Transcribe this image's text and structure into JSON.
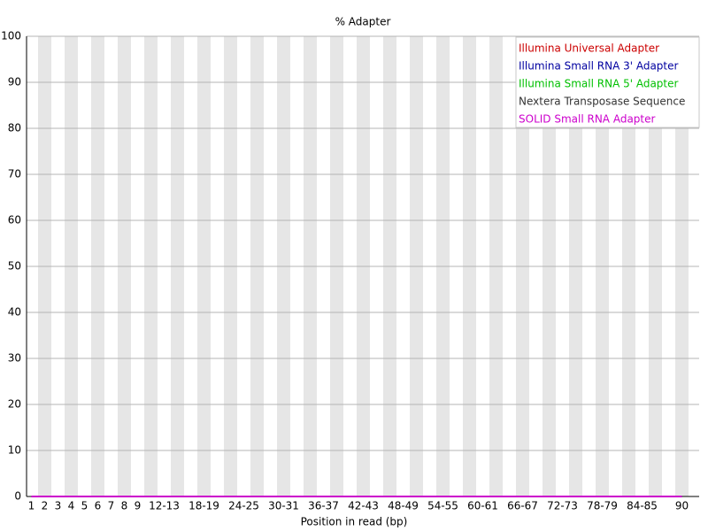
{
  "chart_data": {
    "type": "line",
    "title": "% Adapter",
    "x_label": "Position in read (bp)",
    "categories": [
      "1",
      "2",
      "3",
      "4",
      "5",
      "6",
      "7",
      "8",
      "9",
      null,
      "12-13",
      null,
      null,
      "18-19",
      null,
      null,
      "24-25",
      null,
      null,
      "30-31",
      null,
      null,
      "36-37",
      null,
      null,
      "42-43",
      null,
      null,
      "48-49",
      null,
      null,
      "54-55",
      null,
      null,
      "60-61",
      null,
      null,
      "66-67",
      null,
      null,
      "72-73",
      null,
      null,
      "78-79",
      null,
      null,
      "84-85",
      null,
      null,
      "90"
    ],
    "series": [
      {
        "name": "Illumina Universal Adapter",
        "color": "#cc0000",
        "values": [
          0,
          0,
          0,
          0,
          0,
          0,
          0,
          0,
          0,
          0,
          0,
          0,
          0,
          0,
          0,
          0,
          0,
          0,
          0,
          0,
          0,
          0,
          0,
          0,
          0,
          0,
          0,
          0,
          0,
          0,
          0,
          0,
          0,
          0,
          0,
          0,
          0,
          0,
          0,
          0,
          0,
          0,
          0,
          0,
          0,
          0,
          0,
          0,
          0,
          0
        ]
      },
      {
        "name": "Illumina Small RNA 3' Adapter",
        "color": "#0000a0",
        "values": [
          0,
          0,
          0,
          0,
          0,
          0,
          0,
          0,
          0,
          0,
          0,
          0,
          0,
          0,
          0,
          0,
          0,
          0,
          0,
          0,
          0,
          0,
          0,
          0,
          0,
          0,
          0,
          0,
          0,
          0,
          0,
          0,
          0,
          0,
          0,
          0,
          0,
          0,
          0,
          0,
          0,
          0,
          0,
          0,
          0,
          0,
          0,
          0,
          0,
          0
        ]
      },
      {
        "name": "Illumina Small RNA 5' Adapter",
        "color": "#00c000",
        "values": [
          0,
          0,
          0,
          0,
          0,
          0,
          0,
          0,
          0,
          0,
          0,
          0,
          0,
          0,
          0,
          0,
          0,
          0,
          0,
          0,
          0,
          0,
          0,
          0,
          0,
          0,
          0,
          0,
          0,
          0,
          0,
          0,
          0,
          0,
          0,
          0,
          0,
          0,
          0,
          0,
          0,
          0,
          0,
          0,
          0,
          0,
          0,
          0,
          0,
          0
        ]
      },
      {
        "name": "Nextera Transposase Sequence",
        "color": "#333333",
        "values": [
          0,
          0,
          0,
          0,
          0,
          0,
          0,
          0,
          0,
          0,
          0,
          0,
          0,
          0,
          0,
          0,
          0,
          0,
          0,
          0,
          0,
          0,
          0,
          0,
          0,
          0,
          0,
          0,
          0,
          0,
          0,
          0,
          0,
          0,
          0,
          0,
          0,
          0,
          0,
          0,
          0,
          0,
          0,
          0,
          0,
          0,
          0,
          0,
          0,
          0
        ]
      },
      {
        "name": "SOLID Small RNA Adapter",
        "color": "#cc00cc",
        "values": [
          0,
          0,
          0,
          0,
          0,
          0,
          0,
          0,
          0,
          0,
          0,
          0,
          0,
          0,
          0,
          0,
          0,
          0,
          0,
          0,
          0,
          0,
          0,
          0,
          0,
          0,
          0,
          0,
          0,
          0,
          0,
          0,
          0,
          0,
          0,
          0,
          0,
          0,
          0,
          0,
          0,
          0,
          0,
          0,
          0,
          0,
          0,
          0,
          0,
          0
        ]
      }
    ],
    "ylim": [
      0,
      100
    ],
    "yticks": [
      0,
      10,
      20,
      30,
      40,
      50,
      60,
      70,
      80,
      90,
      100
    ],
    "grid": true,
    "legend": "top-right"
  }
}
